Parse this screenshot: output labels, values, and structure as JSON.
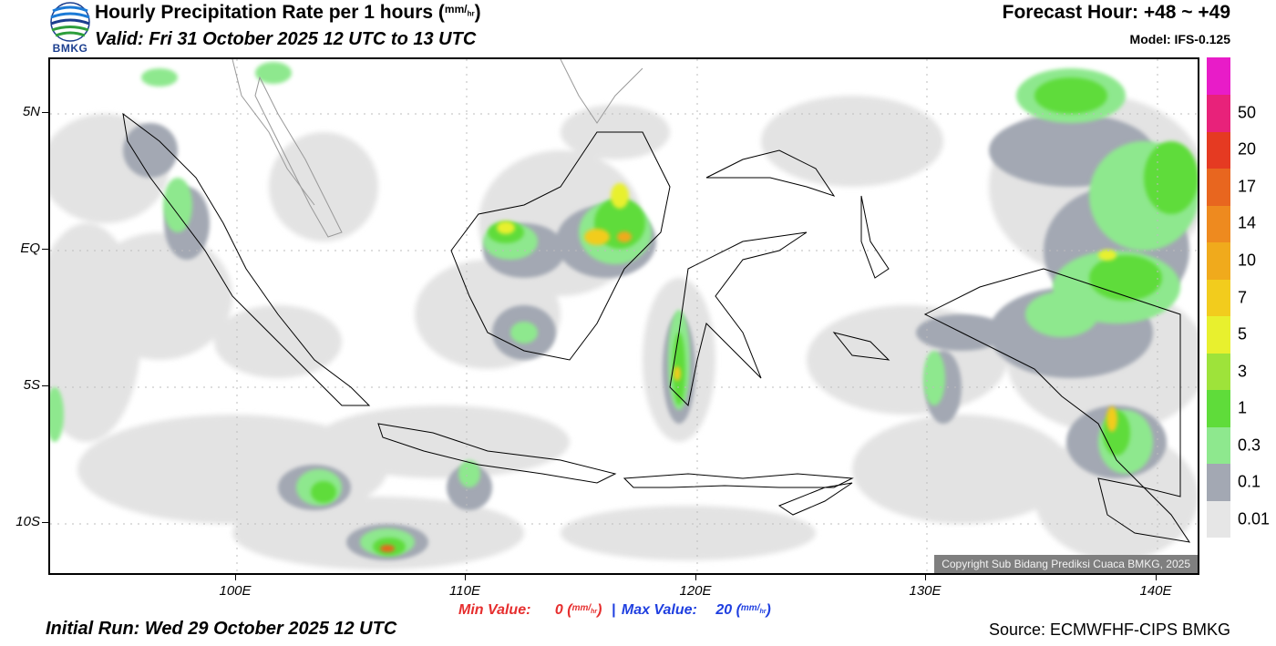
{
  "header": {
    "title": "Hourly Precipitation Rate per 1 hours",
    "title_unit_top": "mm",
    "title_unit_bottom": "hr",
    "valid": "Valid: Fri 31 October 2025 12 UTC to 13 UTC",
    "forecast_hour": "Forecast Hour: +48 ~ +49",
    "model": "Model: IFS-0.125",
    "logo_text": "BMKG"
  },
  "map": {
    "latitude_labels": [
      "5N",
      "EQ",
      "5S",
      "10S"
    ],
    "longitude_labels": [
      "100E",
      "110E",
      "120E",
      "130E",
      "140E"
    ],
    "copyright": "Copyright Sub Bidang Prediksi Cuaca BMKG, 2025"
  },
  "stats": {
    "min_label": "Min Value:",
    "min_value": "0",
    "max_label": "Max Value:",
    "max_value": "20",
    "unit_top": "mm",
    "unit_bottom": "hr",
    "separator": "|"
  },
  "footer": {
    "initial_run": "Initial Run: Wed 29 October 2025 12 UTC",
    "source": "Source: ECMWFHF-CIPS BMKG"
  },
  "legend": {
    "labels": [
      "0.01",
      "0.1",
      "0.3",
      "1",
      "3",
      "5",
      "7",
      "10",
      "14",
      "17",
      "20",
      "50"
    ],
    "colors": [
      "#e6e6e6",
      "#a3a8b3",
      "#8ee88e",
      "#5fdc3a",
      "#9ee33a",
      "#e8f02e",
      "#f2cc1d",
      "#f0aa1c",
      "#ee8a1f",
      "#e8661f",
      "#e53a22",
      "#e8227a",
      "#e81cc8"
    ]
  }
}
